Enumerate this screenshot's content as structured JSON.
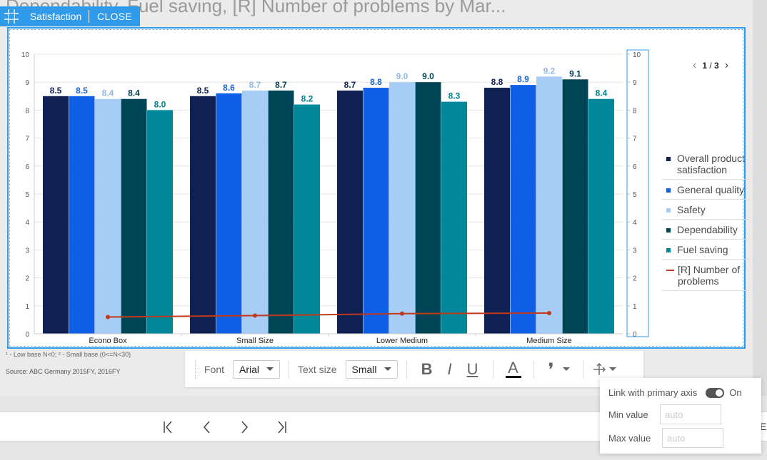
{
  "page": {
    "title": "Dependability, Fuel saving, [R] Number of problems by Mar...",
    "footnote": "¹ - Low base N<0;   ² - Small base (0<=N<30)",
    "source": "Source: ABC Germany 2015FY, 2016FY"
  },
  "selection_toolbar": {
    "label": "Satisfaction",
    "close_label": "CLOSE"
  },
  "pager": {
    "current": "1",
    "separator": "/",
    "total": "3"
  },
  "format_toolbar": {
    "font_label": "Font",
    "font_value": "Arial",
    "size_label": "Text size",
    "size_value": "Small",
    "bold": "B",
    "italic": "I",
    "underline": "U",
    "font_color": "A",
    "quote": "❜"
  },
  "axis_popup": {
    "link_label": "Link with primary axis",
    "link_state": "On",
    "min_label": "Min value",
    "min_placeholder": "auto",
    "max_label": "Max value",
    "max_placeholder": "auto"
  },
  "bottom_bar": {
    "trailing_text": "E"
  },
  "chart_data": {
    "type": "bar",
    "categories": [
      "Econo Box",
      "Small Size",
      "Lower Medium",
      "Medium Size"
    ],
    "ylim": [
      0,
      10
    ],
    "y2lim": [
      0,
      10
    ],
    "yticks": [
      0,
      1,
      2,
      3,
      4,
      5,
      6,
      7,
      8,
      9,
      10
    ],
    "grid": true,
    "legend_position": "right",
    "series": [
      {
        "name": "Overall product satisfaction",
        "color": "#0f2152",
        "label_color": "#0f2152",
        "values": [
          8.5,
          8.5,
          8.7,
          8.8
        ]
      },
      {
        "name": "General quality",
        "color": "#0f5ee6",
        "label_color": "#1864d8",
        "values": [
          8.5,
          8.6,
          8.8,
          8.9
        ]
      },
      {
        "name": "Safety",
        "color": "#a7cdf6",
        "label_color": "#8fb8e8",
        "values": [
          8.4,
          8.7,
          9.0,
          9.2
        ]
      },
      {
        "name": "Dependability",
        "color": "#004555",
        "label_color": "#003e4c",
        "values": [
          8.4,
          8.7,
          9.0,
          9.1
        ]
      },
      {
        "name": "Fuel saving",
        "color": "#00889a",
        "label_color": "#00808f",
        "values": [
          8.0,
          8.2,
          8.3,
          8.4
        ]
      }
    ],
    "line_series": {
      "name": "[R] Number of problems",
      "color": "#c0391b",
      "axis": "secondary",
      "values": [
        0.6,
        0.65,
        0.72,
        0.74
      ]
    }
  }
}
